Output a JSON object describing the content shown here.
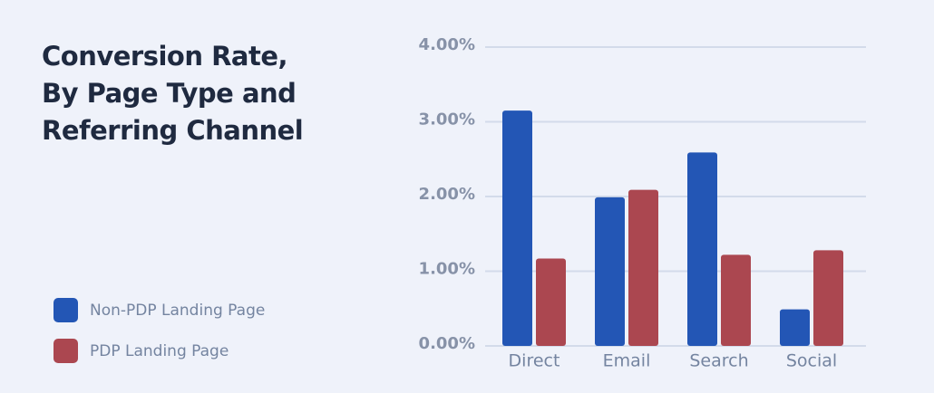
{
  "chart_data": {
    "type": "bar",
    "title": "Conversion Rate, By Page Type and Referring Channel",
    "categories": [
      "Direct",
      "Email",
      "Search",
      "Social"
    ],
    "series": [
      {
        "name": "Non-PDP Landing Page",
        "color": "#2356b5",
        "values": [
          3.15,
          1.99,
          2.59,
          0.49
        ]
      },
      {
        "name": "PDP Landing Page",
        "color": "#ab4750",
        "values": [
          1.17,
          2.09,
          1.22,
          1.28
        ]
      }
    ],
    "ylim": [
      0,
      4
    ],
    "yticks": [
      {
        "value": 0,
        "label": "0.00%"
      },
      {
        "value": 1,
        "label": "1.00%"
      },
      {
        "value": 2,
        "label": "2.00%"
      },
      {
        "value": 3,
        "label": "3.00%"
      },
      {
        "value": 4,
        "label": "4.00%"
      }
    ],
    "grid": true,
    "legend": "bottom-left"
  }
}
